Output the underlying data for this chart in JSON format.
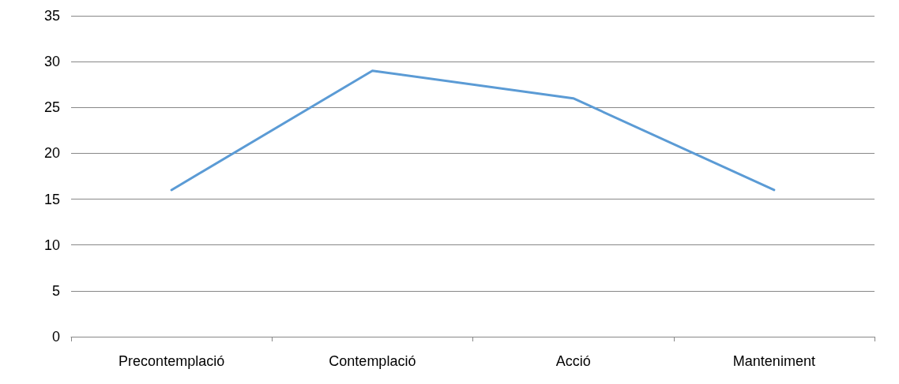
{
  "chart_data": {
    "type": "line",
    "categories": [
      "Precontemplació",
      "Contemplació",
      "Acció",
      "Manteniment"
    ],
    "series": [
      {
        "color": "#5b9bd5",
        "values": [
          16,
          29,
          26,
          16
        ]
      }
    ],
    "ylim": [
      0,
      35
    ],
    "yticks": [
      0,
      5,
      10,
      15,
      20,
      25,
      30,
      35
    ],
    "grid": "y",
    "marker": "none",
    "line_style": "solid"
  }
}
